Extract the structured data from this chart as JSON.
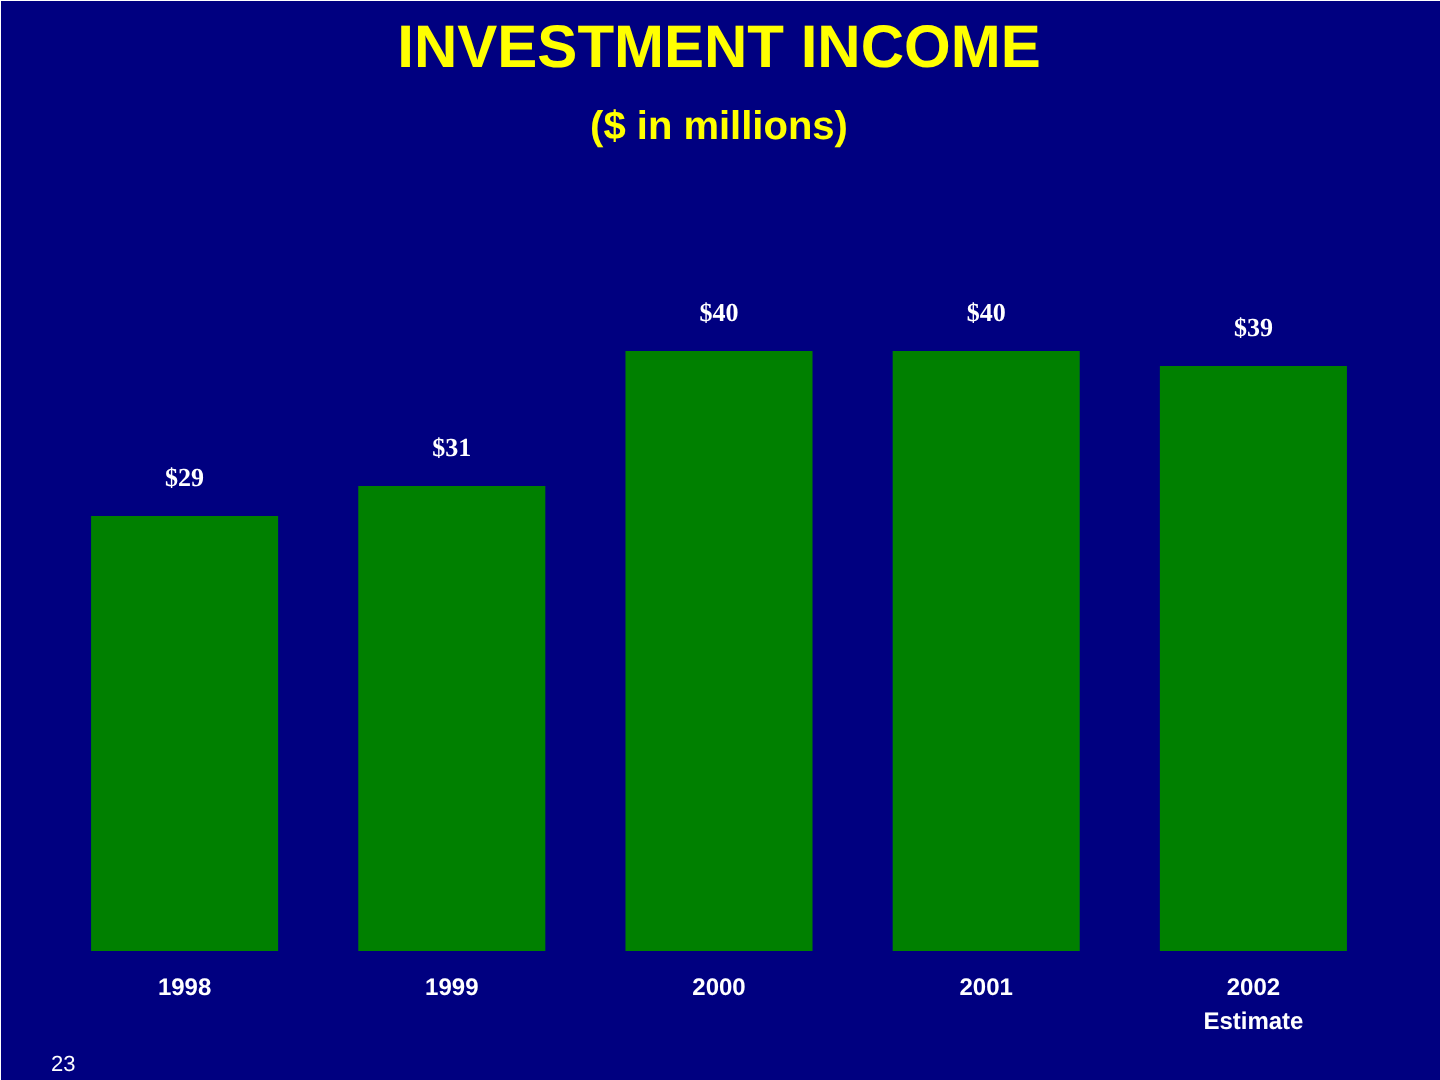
{
  "chart_data": {
    "type": "bar",
    "title": "INVESTMENT INCOME",
    "subtitle": "($ in millions)",
    "categories": [
      "1998",
      "1999",
      "2000",
      "2001",
      "2002\nEstimate"
    ],
    "values": [
      29,
      31,
      40,
      40,
      39
    ],
    "value_labels": [
      "$29",
      "$31",
      "$40",
      "$40",
      "$39"
    ],
    "color": "#008000",
    "annotations": [
      "23"
    ]
  }
}
